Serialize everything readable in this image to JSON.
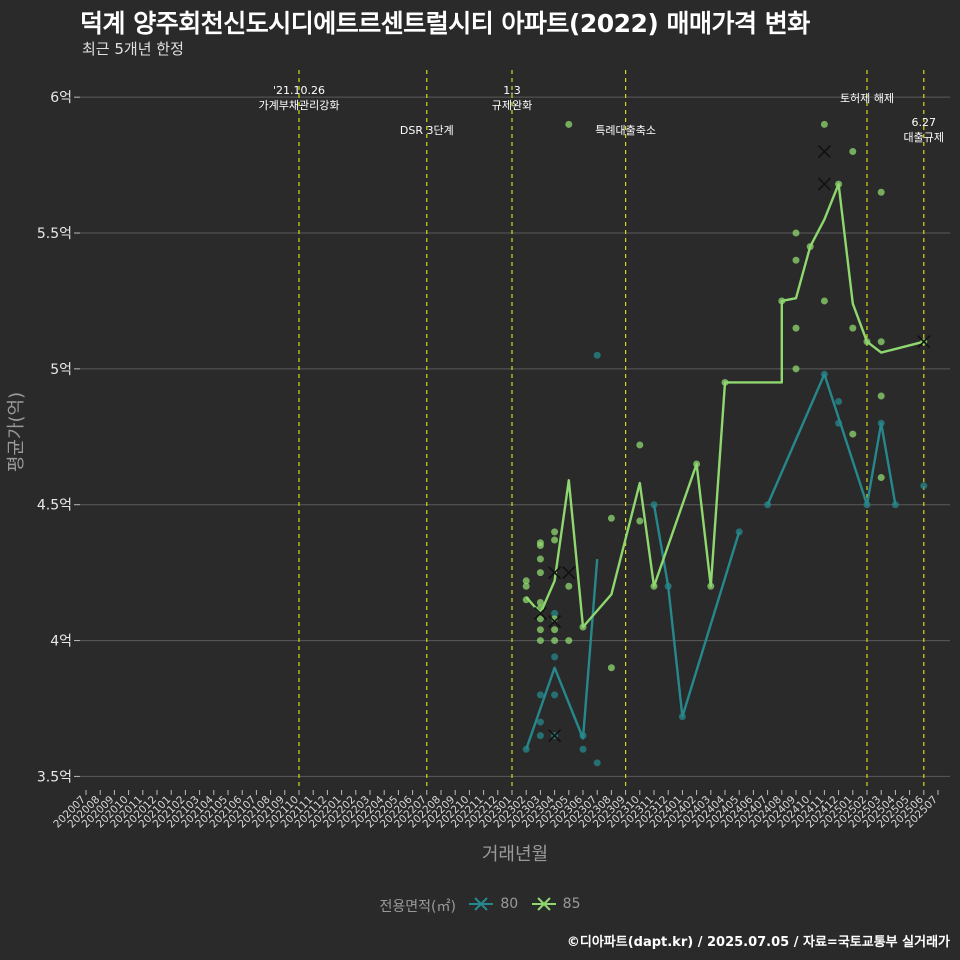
{
  "title": "덕계 양주회천신도시디에트르센트럴시티 아파트(2022) 매매가격 변화",
  "subtitle": "최근 5개년 한정",
  "caption": "©디아파트(dapt.kr) / 2025.07.05 / 자료=국토교통부 실거래가",
  "legend": {
    "title": "전용면적(㎡)",
    "items": [
      "80",
      "85"
    ]
  },
  "colors": {
    "series_80": "#26888c",
    "series_85": "#8fd86f",
    "event_line": "#d6d61e",
    "background": "#2a2a2a",
    "grid": "#5a5a5a"
  },
  "chart_data": {
    "type": "line",
    "xlabel": "거래년월",
    "ylabel": "평균가(억)",
    "ylim": [
      3.45,
      6.1
    ],
    "yticks": [
      3.5,
      4,
      4.5,
      5,
      5.5,
      6
    ],
    "ytick_labels": [
      "3.5억",
      "4억",
      "4.5억",
      "5억",
      "5.5억",
      "6억"
    ],
    "x_categories": [
      "202007",
      "202008",
      "202009",
      "202010",
      "202011",
      "202012",
      "202101",
      "202102",
      "202103",
      "202104",
      "202105",
      "202106",
      "202107",
      "202108",
      "202109",
      "202110",
      "202111",
      "202112",
      "202201",
      "202202",
      "202203",
      "202204",
      "202205",
      "202206",
      "202207",
      "202208",
      "202209",
      "202210",
      "202211",
      "202212",
      "202301",
      "202302",
      "202303",
      "202304",
      "202305",
      "202306",
      "202307",
      "202308",
      "202309",
      "202310",
      "202311",
      "202312",
      "202401",
      "202402",
      "202403",
      "202404",
      "202405",
      "202406",
      "202407",
      "202408",
      "202409",
      "202410",
      "202411",
      "202412",
      "202501",
      "202502",
      "202503",
      "202504",
      "202505",
      "202506",
      "202507"
    ],
    "events": [
      {
        "x": "202110",
        "label": "'21.10.26\n가계부채관리강화",
        "row": 0
      },
      {
        "x": "202207",
        "label": "DSR 3단계",
        "row": 2
      },
      {
        "x": "202301",
        "label": "1.3\n규제완화",
        "row": 0
      },
      {
        "x": "202309",
        "label": "특례대출축소",
        "row": 2
      },
      {
        "x": "202502",
        "label": "토허제 해제",
        "row": 1
      },
      {
        "x": "202506",
        "label": "6.27\n대출규제",
        "row": 3
      }
    ],
    "series": [
      {
        "name": "80",
        "line": [
          [
            "202302",
            3.6
          ],
          [
            "202304",
            3.9
          ],
          [
            "202306",
            3.64
          ],
          [
            "202307",
            4.3
          ],
          null,
          [
            "202311",
            4.5
          ],
          [
            "202312",
            4.2
          ],
          [
            "202401",
            3.72
          ],
          [
            "202405",
            4.4
          ],
          null,
          [
            "202407",
            4.5
          ],
          [
            "202411",
            4.98
          ],
          [
            "202502",
            4.5
          ],
          [
            "202503",
            4.8
          ],
          [
            "202504",
            4.5
          ]
        ],
        "points": [
          [
            "202302",
            3.6
          ],
          [
            "202303",
            3.65
          ],
          [
            "202303",
            3.7
          ],
          [
            "202303",
            3.8
          ],
          [
            "202304",
            3.8
          ],
          [
            "202304",
            3.94
          ],
          [
            "202304",
            4.1
          ],
          [
            "202304",
            3.65
          ],
          [
            "202306",
            3.6
          ],
          [
            "202306",
            3.65
          ],
          [
            "202307",
            3.55
          ],
          [
            "202307",
            5.05
          ],
          [
            "202311",
            4.5
          ],
          [
            "202312",
            4.2
          ],
          [
            "202401",
            3.72
          ],
          [
            "202405",
            4.4
          ],
          [
            "202407",
            4.5
          ],
          [
            "202411",
            4.98
          ],
          [
            "202412",
            4.88
          ],
          [
            "202412",
            4.8
          ],
          [
            "202502",
            4.5
          ],
          [
            "202503",
            4.8
          ],
          [
            "202504",
            4.5
          ],
          [
            "202506",
            4.57
          ]
        ],
        "canceled": [
          [
            "202304",
            3.65
          ]
        ]
      },
      {
        "name": "85",
        "line": [
          [
            "202302",
            4.16
          ],
          [
            "202303",
            4.1
          ],
          [
            "202304",
            4.22
          ],
          [
            "202305",
            4.59
          ],
          [
            "202306",
            4.05
          ],
          [
            "202308",
            4.17
          ],
          [
            "202310",
            4.58
          ],
          [
            "202311",
            4.2
          ],
          [
            "202402",
            4.65
          ],
          [
            "202403",
            4.2
          ],
          [
            "202404",
            4.95
          ],
          [
            "202408",
            4.95
          ],
          [
            "202408",
            5.25
          ],
          [
            "202409",
            5.26
          ],
          [
            "202410",
            5.45
          ],
          [
            "202411",
            5.55
          ],
          [
            "202412",
            5.68
          ],
          [
            "202501",
            5.24
          ],
          [
            "202502",
            5.1
          ],
          [
            "202503",
            5.06
          ],
          [
            "202506",
            5.1
          ]
        ],
        "points": [
          [
            "202302",
            4.15
          ],
          [
            "202302",
            4.2
          ],
          [
            "202302",
            4.22
          ],
          [
            "202303",
            4.0
          ],
          [
            "202303",
            4.04
          ],
          [
            "202303",
            4.08
          ],
          [
            "202303",
            4.12
          ],
          [
            "202303",
            4.14
          ],
          [
            "202303",
            4.25
          ],
          [
            "202303",
            4.3
          ],
          [
            "202303",
            4.35
          ],
          [
            "202303",
            4.36
          ],
          [
            "202304",
            4.0
          ],
          [
            "202304",
            4.04
          ],
          [
            "202304",
            4.08
          ],
          [
            "202304",
            4.37
          ],
          [
            "202304",
            4.4
          ],
          [
            "202305",
            4.0
          ],
          [
            "202305",
            4.2
          ],
          [
            "202305",
            5.9
          ],
          [
            "202306",
            4.05
          ],
          [
            "202308",
            4.45
          ],
          [
            "202308",
            3.9
          ],
          [
            "202310",
            4.44
          ],
          [
            "202310",
            4.72
          ],
          [
            "202311",
            4.2
          ],
          [
            "202402",
            4.65
          ],
          [
            "202403",
            4.2
          ],
          [
            "202404",
            4.95
          ],
          [
            "202408",
            5.25
          ],
          [
            "202409",
            5.0
          ],
          [
            "202409",
            5.15
          ],
          [
            "202409",
            5.4
          ],
          [
            "202409",
            5.5
          ],
          [
            "202410",
            5.45
          ],
          [
            "202411",
            5.25
          ],
          [
            "202411",
            5.9
          ],
          [
            "202412",
            5.68
          ],
          [
            "202501",
            5.15
          ],
          [
            "202501",
            4.76
          ],
          [
            "202501",
            5.8
          ],
          [
            "202502",
            5.1
          ],
          [
            "202503",
            5.1
          ],
          [
            "202503",
            5.65
          ],
          [
            "202503",
            4.6
          ],
          [
            "202503",
            4.9
          ],
          [
            "202506",
            5.1
          ]
        ],
        "canceled": [
          [
            "202303",
            4.1
          ],
          [
            "202304",
            4.25
          ],
          [
            "202304",
            4.07
          ],
          [
            "202305",
            4.25
          ],
          [
            "202411",
            5.8
          ],
          [
            "202411",
            5.68
          ],
          [
            "202506",
            5.1
          ]
        ]
      }
    ]
  }
}
